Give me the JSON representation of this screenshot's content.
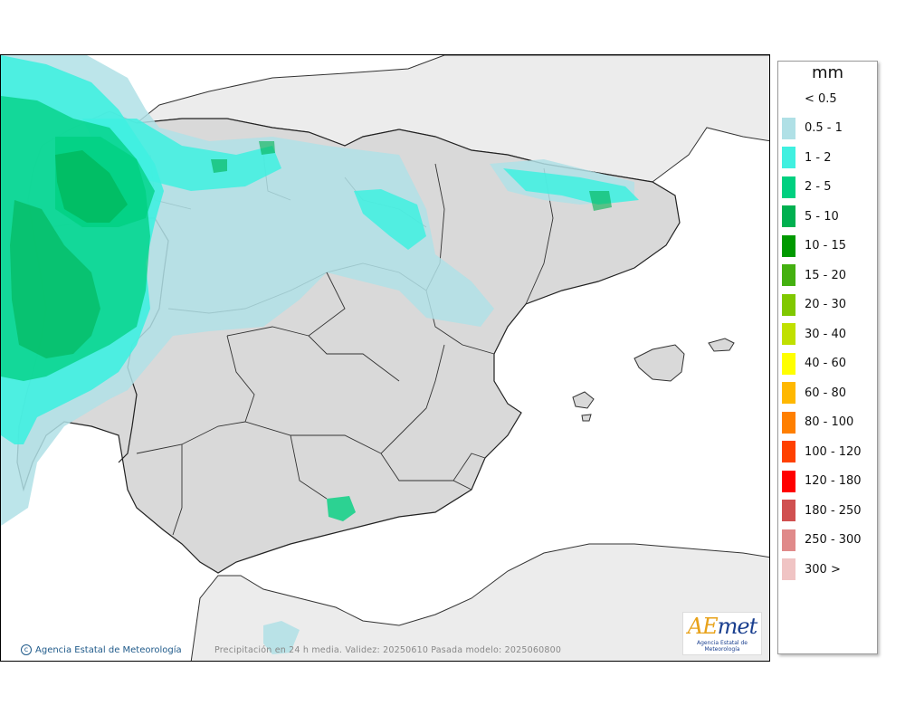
{
  "map": {
    "credit": "Agencia Estatal de Meteorología",
    "caption": "Precipitación en 24 h media. Validez: 20250610 Pasada modelo: 2025060800",
    "logo": {
      "mark_a": "AE",
      "mark_b": "met",
      "subtitle": "Agencia Estatal de Meteorología"
    },
    "colors": {
      "sea": "#ffffff",
      "land": "#d9d9d9",
      "foreign_land": "#ececec",
      "border": "#222222"
    }
  },
  "legend": {
    "unit": "mm",
    "classes": [
      {
        "label": "< 0.5",
        "color": "#ffffff"
      },
      {
        "label": "0.5 - 1",
        "color": "#b0e0e6"
      },
      {
        "label": "1 - 2",
        "color": "#40f0e0"
      },
      {
        "label": "2 - 5",
        "color": "#00d080"
      },
      {
        "label": "5 - 10",
        "color": "#00b050"
      },
      {
        "label": "10 - 15",
        "color": "#009900"
      },
      {
        "label": "15 - 20",
        "color": "#44b010"
      },
      {
        "label": "20 - 30",
        "color": "#80c800"
      },
      {
        "label": "30 - 40",
        "color": "#c0e000"
      },
      {
        "label": "40 - 60",
        "color": "#ffff00"
      },
      {
        "label": "60 - 80",
        "color": "#ffb800"
      },
      {
        "label": "80 - 100",
        "color": "#ff7f00"
      },
      {
        "label": "100 - 120",
        "color": "#ff4000"
      },
      {
        "label": "120 - 180",
        "color": "#ff0000"
      },
      {
        "label": "180 - 250",
        "color": "#d05050"
      },
      {
        "label": "250 - 300",
        "color": "#e08a8a"
      },
      {
        "label": "300 >",
        "color": "#f0c4c4"
      }
    ]
  }
}
